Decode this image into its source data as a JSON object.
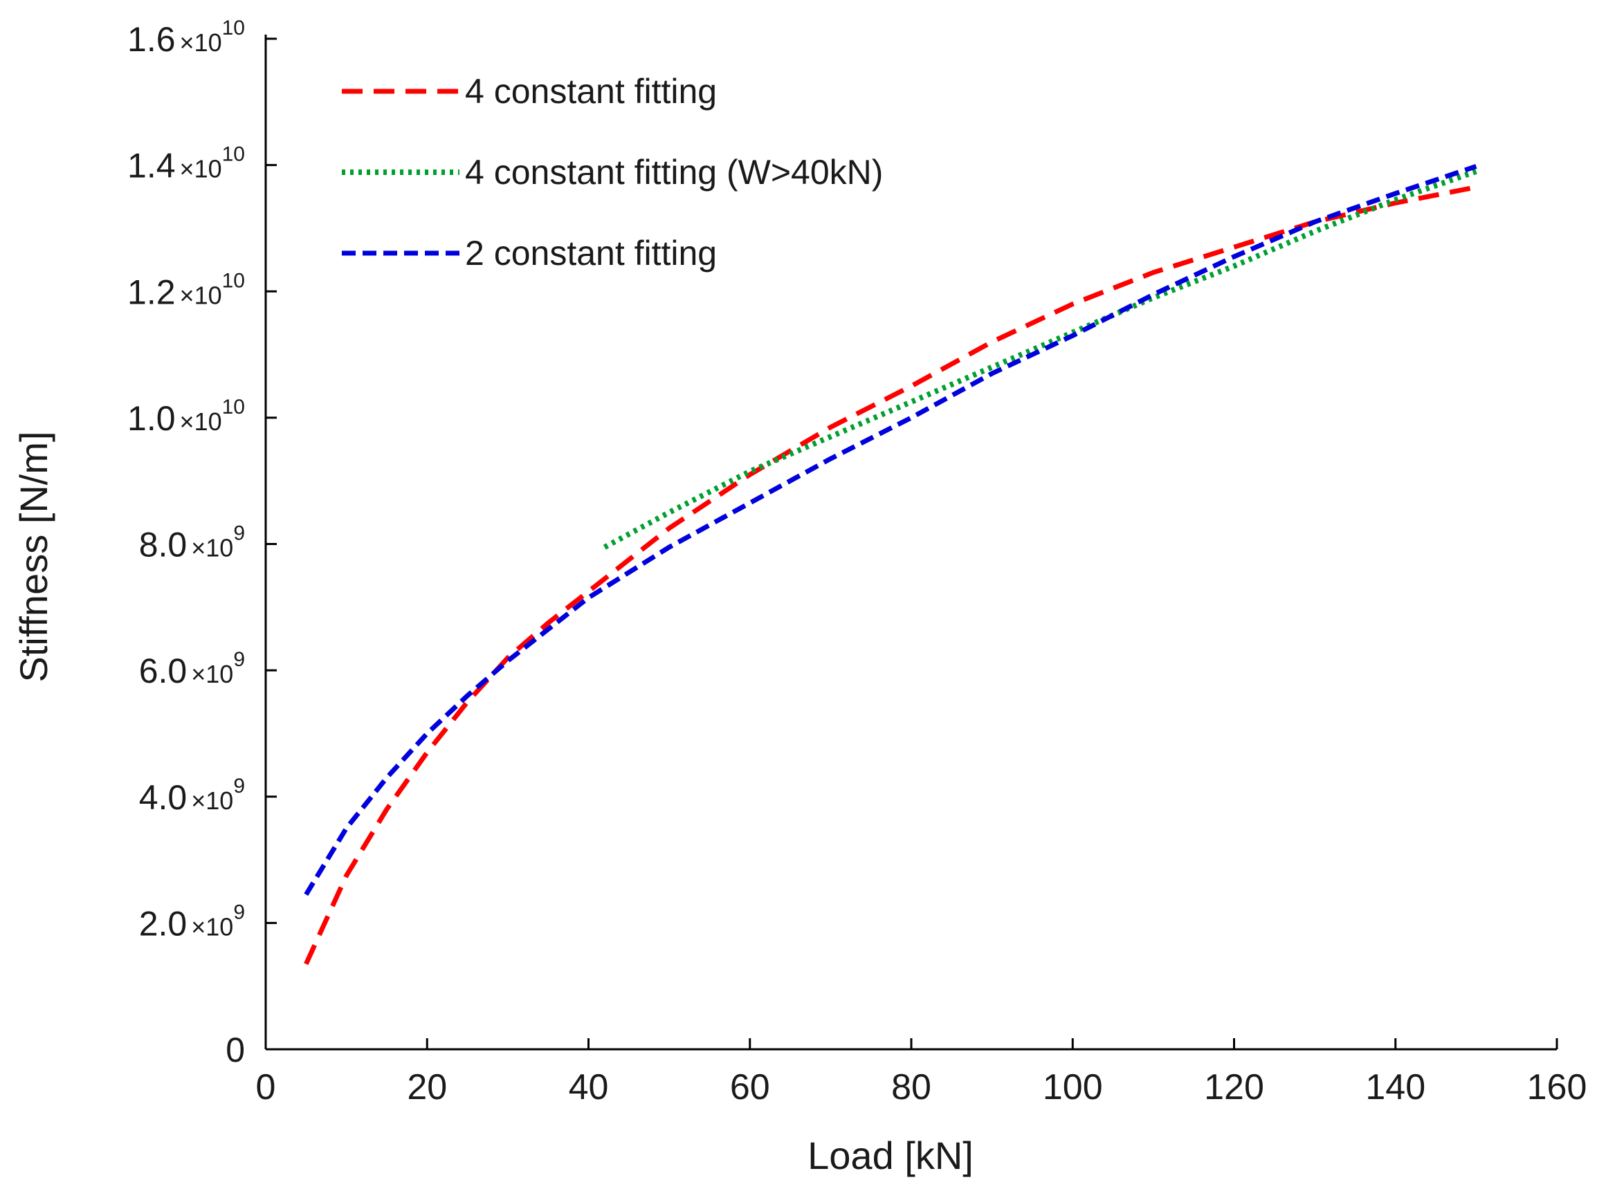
{
  "chart_data": {
    "type": "line",
    "title": "",
    "xlabel": "Load [kN]",
    "ylabel": "Stiffness [N/m]",
    "xlim": [
      0,
      160
    ],
    "ylim": [
      0,
      16000000000
    ],
    "xticks": [
      0,
      20,
      40,
      60,
      80,
      100,
      120,
      140,
      160
    ],
    "xtick_labels": [
      "0",
      "20",
      "40",
      "60",
      "80",
      "100",
      "120",
      "140",
      "160"
    ],
    "yticks": [
      0,
      2000000000,
      4000000000,
      6000000000,
      8000000000,
      10000000000,
      12000000000,
      14000000000,
      16000000000
    ],
    "ytick_labels": [
      {
        "mantissa": "0",
        "exponent": ""
      },
      {
        "mantissa": "2.0",
        "exponent": "9"
      },
      {
        "mantissa": "4.0",
        "exponent": "9"
      },
      {
        "mantissa": "6.0",
        "exponent": "9"
      },
      {
        "mantissa": "8.0",
        "exponent": "9"
      },
      {
        "mantissa": "1.0",
        "exponent": "10"
      },
      {
        "mantissa": "1.2",
        "exponent": "10"
      },
      {
        "mantissa": "1.4",
        "exponent": "10"
      },
      {
        "mantissa": "1.6",
        "exponent": "10"
      }
    ],
    "ytick_multiplier": "×10",
    "grid": false,
    "legend_position": "top-left",
    "series": [
      {
        "name": "4 constant fitting",
        "color": "#ff0000",
        "style": "dashed",
        "x": [
          5,
          10,
          15,
          20,
          25,
          30,
          35,
          40,
          45,
          50,
          60,
          70,
          80,
          90,
          100,
          110,
          120,
          130,
          140,
          150
        ],
        "y": [
          1350000000,
          2750000000,
          3800000000,
          4700000000,
          5500000000,
          6200000000,
          6750000000,
          7250000000,
          7750000000,
          8250000000,
          9100000000,
          9850000000,
          10500000000,
          11200000000,
          11800000000,
          12300000000,
          12700000000,
          13100000000,
          13400000000,
          13650000000
        ]
      },
      {
        "name": "4 constant fitting (W>40kN)",
        "color": "#00a030",
        "style": "dotted",
        "x": [
          42,
          50,
          60,
          70,
          80,
          90,
          100,
          110,
          120,
          130,
          140,
          150
        ],
        "y": [
          7950000000,
          8500000000,
          9150000000,
          9700000000,
          10250000000,
          10800000000,
          11350000000,
          11900000000,
          12400000000,
          12950000000,
          13450000000,
          13900000000
        ]
      },
      {
        "name": "2 constant fitting",
        "color": "#0000dd",
        "style": "dashed",
        "x": [
          5,
          10,
          15,
          20,
          25,
          30,
          35,
          40,
          50,
          60,
          70,
          80,
          90,
          100,
          110,
          120,
          130,
          140,
          150
        ],
        "y": [
          2450000000,
          3500000000,
          4300000000,
          5000000000,
          5600000000,
          6150000000,
          6650000000,
          7150000000,
          7950000000,
          8650000000,
          9350000000,
          10000000000,
          10700000000,
          11300000000,
          11950000000,
          12550000000,
          13100000000,
          13550000000,
          13980000000
        ]
      }
    ]
  }
}
